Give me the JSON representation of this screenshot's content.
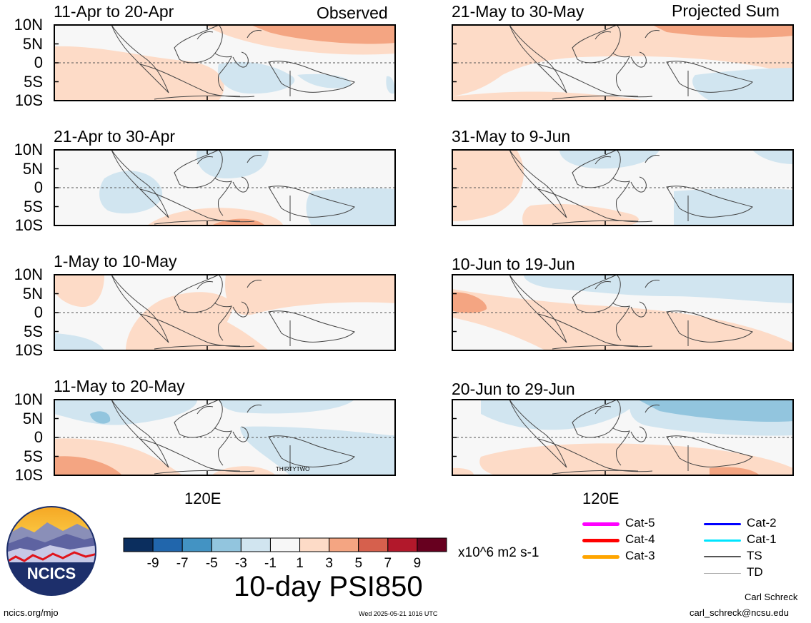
{
  "header": {
    "left_panel_label": "Observed",
    "right_panel_label": "Projected Sum"
  },
  "panels": [
    {
      "title": "11-Apr to 20-Apr",
      "column": "left",
      "kind": "observed"
    },
    {
      "title": "21-Apr to 30-Apr",
      "column": "left",
      "kind": "observed"
    },
    {
      "title": "1-May to 10-May",
      "column": "left",
      "kind": "observed"
    },
    {
      "title": "11-May to 20-May",
      "column": "left",
      "kind": "observed",
      "storm_label": "THIRTYTWO"
    },
    {
      "title": "21-May to 30-May",
      "column": "right",
      "kind": "projected"
    },
    {
      "title": "31-May to 9-Jun",
      "column": "right",
      "kind": "projected"
    },
    {
      "title": "10-Jun to 19-Jun",
      "column": "right",
      "kind": "projected"
    },
    {
      "title": "20-Jun to 29-Jun",
      "column": "right",
      "kind": "projected"
    }
  ],
  "lat_labels": [
    "10N",
    "5N",
    "0",
    "5S",
    "10S"
  ],
  "lon_label": "120E",
  "colorbar": {
    "colors": [
      "#0b2e5e",
      "#2166ac",
      "#4393c3",
      "#92c5de",
      "#d1e5f0",
      "#f7f7f7",
      "#fddbc7",
      "#f4a582",
      "#d6604d",
      "#b2182b",
      "#67001f"
    ],
    "tick_labels": [
      "-9",
      "-7",
      "-5",
      "-3",
      "-1",
      "1",
      "3",
      "5",
      "7",
      "9"
    ],
    "units": "x10^6 m2 s-1"
  },
  "product_title": "10-day PSI850",
  "legend": {
    "items": [
      {
        "label": "Cat-5",
        "color": "#ff00ff",
        "weight": 5
      },
      {
        "label": "Cat-4",
        "color": "#ff0000",
        "weight": 5
      },
      {
        "label": "Cat-3",
        "color": "#ffa500",
        "weight": 5
      },
      {
        "label": "Cat-2",
        "color": "#0000ff",
        "weight": 3
      },
      {
        "label": "Cat-1",
        "color": "#00e5ff",
        "weight": 3
      },
      {
        "label": "TS",
        "color": "#555555",
        "weight": 2
      },
      {
        "label": "TD",
        "color": "#aaaaaa",
        "weight": 1
      }
    ]
  },
  "logo": {
    "text": "NCICS"
  },
  "footer": {
    "url": "ncics.org/mjo",
    "timestamp": "Wed 2025-05-21 1016 UTC",
    "author": "Carl Schreck",
    "email": "carl_schreck@ncsu.edu"
  }
}
